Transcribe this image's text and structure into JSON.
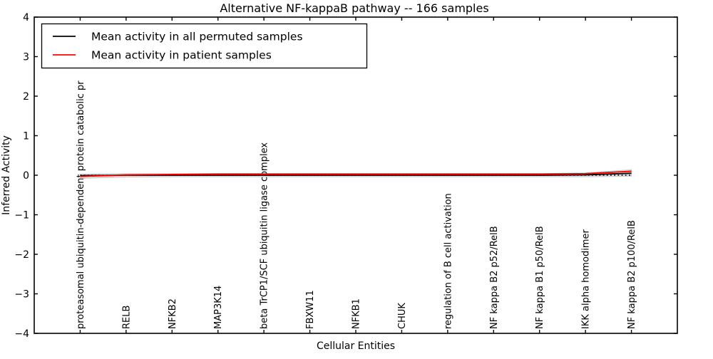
{
  "chart_data": {
    "type": "line",
    "title": "Alternative NF-kappaB pathway -- 166 samples",
    "xlabel": "Cellular Entities",
    "ylabel": "Inferred Activity",
    "ylim": [
      -4,
      4
    ],
    "yticks": [
      4,
      3,
      2,
      1,
      0,
      -1,
      -2,
      -3,
      -4
    ],
    "grid": false,
    "legend_position": "upper left",
    "categories": [
      "proteasomal ubiquitin-dependent protein catabolic pr",
      "RELB",
      "NFKB2",
      "MAP3K14",
      "beta TrCP1/SCF ubiquitin ligase complex",
      "FBXW11",
      "NFKB1",
      "CHUK",
      "regulation of B cell activation",
      "NF kappa B2 p52/RelB",
      "NF kappa B1 p50/RelB",
      "IKK alpha homodimer",
      "NF kappa B2 p100/RelB"
    ],
    "series": [
      {
        "name": "Mean activity in all permuted samples",
        "color": "#000000",
        "values": [
          -0.01,
          0.0,
          0.0,
          0.0,
          0.0,
          0.0,
          0.0,
          0.0,
          0.0,
          0.0,
          0.0,
          0.01,
          0.05
        ]
      },
      {
        "name": "Mean activity in patient samples",
        "color": "#ff0000",
        "values": [
          -0.03,
          0.01,
          0.02,
          0.03,
          0.03,
          0.03,
          0.03,
          0.03,
          0.03,
          0.03,
          0.03,
          0.04,
          0.1
        ]
      }
    ],
    "confidence_band": {
      "around_series": "Mean activity in all permuted samples",
      "color": "#d9d9d9",
      "upper": [
        0.03,
        0.04,
        0.04,
        0.04,
        0.04,
        0.04,
        0.04,
        0.04,
        0.04,
        0.04,
        0.04,
        0.06,
        0.14
      ],
      "lower": [
        -0.08,
        -0.05,
        -0.04,
        -0.04,
        -0.04,
        -0.04,
        -0.04,
        -0.04,
        -0.04,
        -0.04,
        -0.04,
        -0.04,
        -0.03
      ]
    },
    "reference_line": {
      "value": 0,
      "style": "dotted",
      "color": "#000000"
    }
  }
}
